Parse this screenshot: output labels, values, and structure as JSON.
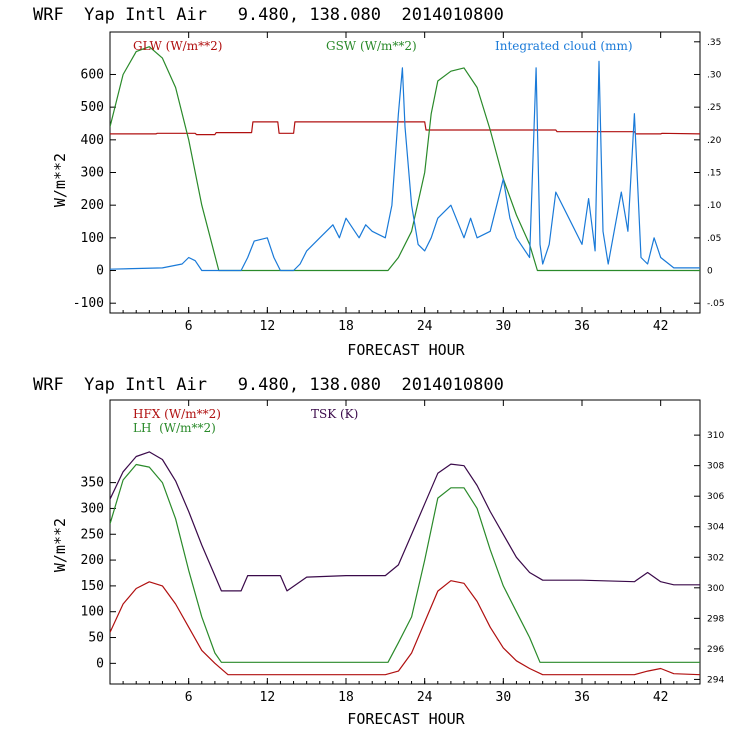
{
  "colors": {
    "red": "#b01010",
    "green": "#2a8a2a",
    "blue": "#1a7ad8",
    "purple": "#3a0a4a",
    "axis": "#000000"
  },
  "chart_data": [
    {
      "type": "line",
      "title": "WRF  Yap Intl Air   9.480, 138.080  2014010800",
      "xlabel": "FORECAST HOUR",
      "ylabel": "W/m**2",
      "xlim": [
        0,
        45
      ],
      "ylim": [
        -130,
        730
      ],
      "y2lim": [
        -0.065,
        0.365
      ],
      "xticks": [
        6,
        12,
        18,
        24,
        30,
        36,
        42
      ],
      "yticks": [
        -100,
        0,
        100,
        200,
        300,
        400,
        500,
        600
      ],
      "y2ticks": [
        -0.05,
        0,
        0.05,
        0.1,
        0.15,
        0.2,
        0.25,
        0.3,
        0.35
      ],
      "y2ticklabels": [
        "-.05",
        "0",
        ".05",
        ".10",
        ".15",
        ".20",
        ".25",
        ".30",
        ".35"
      ],
      "legend": "top",
      "series": [
        {
          "name": "GLW (W/m**2)",
          "color": "red",
          "axis": "left",
          "x": [
            0,
            3.5,
            3.6,
            6.5,
            6.6,
            8,
            8.1,
            10.8,
            10.9,
            12.8,
            12.9,
            14,
            14.1,
            24,
            24.1,
            34,
            34.1,
            40,
            40.1,
            42,
            42.1,
            45
          ],
          "y": [
            418,
            418,
            420,
            420,
            416,
            416,
            422,
            422,
            455,
            455,
            420,
            420,
            455,
            455,
            430,
            430,
            425,
            425,
            418,
            418,
            420,
            418
          ]
        },
        {
          "name": "GSW (W/m**2)",
          "color": "green",
          "axis": "left",
          "x": [
            0,
            1,
            2,
            3,
            4,
            5,
            6,
            7,
            8.3,
            21.2,
            22,
            23,
            24,
            24.5,
            25,
            26,
            27,
            28,
            29,
            30,
            31,
            32,
            32.6,
            45
          ],
          "y": [
            440,
            600,
            670,
            685,
            650,
            560,
            400,
            200,
            0,
            0,
            40,
            120,
            300,
            480,
            580,
            610,
            620,
            560,
            430,
            280,
            170,
            80,
            0,
            0
          ]
        },
        {
          "name": "Integrated cloud (mm)",
          "color": "blue",
          "axis": "right",
          "x": [
            0,
            4,
            5.5,
            6,
            6.5,
            7,
            7.5,
            8.5,
            10,
            10.5,
            11,
            12,
            12.5,
            13,
            14,
            14.5,
            15,
            16,
            17,
            17.5,
            18,
            19,
            19.5,
            20,
            21,
            21.5,
            22,
            22.3,
            22.5,
            23,
            23.5,
            24,
            24.5,
            25,
            26,
            27,
            27.5,
            28,
            29,
            30,
            30.5,
            31,
            32,
            32.5,
            32.8,
            33,
            33.5,
            34,
            35,
            36,
            36.5,
            37,
            37.3,
            37.6,
            38,
            39,
            39.5,
            40,
            40.5,
            41,
            41.5,
            42,
            43,
            44,
            45
          ],
          "y": [
            0.002,
            0.004,
            0.01,
            0.02,
            0.015,
            0,
            0,
            0,
            0,
            0.02,
            0.045,
            0.05,
            0.02,
            0,
            0,
            0.01,
            0.03,
            0.05,
            0.07,
            0.05,
            0.08,
            0.05,
            0.07,
            0.06,
            0.05,
            0.1,
            0.24,
            0.31,
            0.22,
            0.1,
            0.04,
            0.03,
            0.05,
            0.08,
            0.1,
            0.05,
            0.08,
            0.05,
            0.06,
            0.14,
            0.08,
            0.05,
            0.02,
            0.31,
            0.04,
            0.01,
            0.04,
            0.12,
            0.08,
            0.04,
            0.11,
            0.03,
            0.32,
            0.06,
            0.01,
            0.12,
            0.06,
            0.24,
            0.02,
            0.01,
            0.05,
            0.02,
            0.004,
            0.004,
            0.004
          ]
        }
      ]
    },
    {
      "type": "line",
      "title": "WRF  Yap Intl Air   9.480, 138.080  2014010800",
      "xlabel": "FORECAST HOUR",
      "ylabel": "W/m**2",
      "xlim": [
        0,
        45
      ],
      "ylim": [
        -40,
        510
      ],
      "y2lim": [
        293.7,
        312.3
      ],
      "xticks": [
        6,
        12,
        18,
        24,
        30,
        36,
        42
      ],
      "yticks": [
        0,
        50,
        100,
        150,
        200,
        250,
        300,
        350
      ],
      "y2ticks": [
        294,
        296,
        298,
        300,
        302,
        304,
        306,
        308,
        310
      ],
      "legend": "top-left",
      "series": [
        {
          "name": "HFX (W/m**2)",
          "color": "red",
          "axis": "left",
          "x": [
            0,
            1,
            2,
            3,
            4,
            5,
            6,
            7,
            8,
            9,
            12,
            18,
            21,
            22,
            23,
            24,
            25,
            26,
            27,
            28,
            29,
            30,
            31,
            32,
            33,
            40,
            41,
            42,
            43,
            45
          ],
          "y": [
            60,
            115,
            145,
            158,
            150,
            115,
            70,
            25,
            0,
            -22,
            -22,
            -22,
            -22,
            -15,
            20,
            80,
            140,
            160,
            155,
            120,
            70,
            30,
            5,
            -10,
            -22,
            -22,
            -15,
            -10,
            -20,
            -22
          ]
        },
        {
          "name": "LH  (W/m**2)",
          "color": "green",
          "axis": "left",
          "x": [
            0,
            1,
            2,
            3,
            4,
            5,
            6,
            7,
            8,
            8.5,
            12,
            18,
            21.2,
            22,
            23,
            24,
            25,
            26,
            27,
            28,
            29,
            30,
            31,
            32,
            32.8,
            45
          ],
          "y": [
            270,
            355,
            385,
            380,
            350,
            280,
            180,
            90,
            20,
            2,
            2,
            2,
            2,
            40,
            90,
            200,
            320,
            340,
            340,
            300,
            220,
            150,
            100,
            50,
            2,
            2
          ]
        },
        {
          "name": "TSK (K)",
          "color": "purple",
          "axis": "right",
          "x": [
            0,
            1,
            2,
            3,
            4,
            5,
            6,
            7,
            8,
            8.5,
            10,
            10.5,
            13,
            13.5,
            15,
            18,
            21,
            22,
            23,
            24,
            25,
            26,
            27,
            28,
            29,
            30,
            31,
            32,
            33,
            36,
            40,
            41,
            42,
            43,
            45
          ],
          "y": [
            305.8,
            307.6,
            308.6,
            308.9,
            308.4,
            307.0,
            305.0,
            302.8,
            300.8,
            299.8,
            299.8,
            300.8,
            300.8,
            299.8,
            300.7,
            300.8,
            300.8,
            301.5,
            303.5,
            305.5,
            307.5,
            308.1,
            308.0,
            306.7,
            305.0,
            303.5,
            302.0,
            301.0,
            300.5,
            300.5,
            300.4,
            301.0,
            300.4,
            300.2,
            300.2
          ]
        }
      ]
    }
  ]
}
